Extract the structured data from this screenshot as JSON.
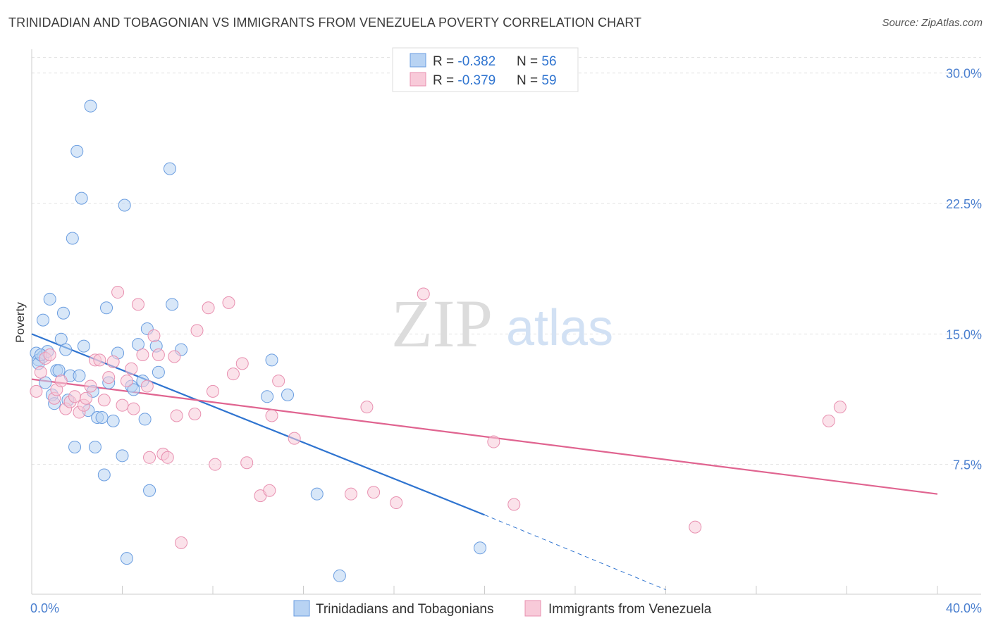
{
  "title": "TRINIDADIAN AND TOBAGONIAN VS IMMIGRANTS FROM VENEZUELA POVERTY CORRELATION CHART",
  "source": "Source: ZipAtlas.com",
  "watermark": {
    "zip": "ZIP",
    "atlas": "atlas"
  },
  "stats": [
    {
      "r_label": "R = ",
      "r_value": "-0.382",
      "n_label": "N = ",
      "n_value": "56",
      "color": "#a9c8f0",
      "stroke": "#6a9de0"
    },
    {
      "r_label": "R = ",
      "r_value": "-0.379",
      "n_label": "N = ",
      "n_value": "59",
      "color": "#f8c4d4",
      "stroke": "#e890b0"
    }
  ],
  "chart_data": {
    "type": "scatter",
    "title": "TRINIDADIAN AND TOBAGONIAN VS IMMIGRANTS FROM VENEZUELA POVERTY CORRELATION CHART",
    "xlabel": "",
    "ylabel": "Poverty",
    "xlim": [
      0,
      40
    ],
    "ylim": [
      0,
      31
    ],
    "x_tick_labels": [
      "0.0%",
      "40.0%"
    ],
    "y_ticks": [
      7.5,
      15.0,
      22.5,
      30.0
    ],
    "y_tick_labels": [
      "7.5%",
      "15.0%",
      "22.5%",
      "30.0%"
    ],
    "grid": true,
    "legend_position": "bottom",
    "series": [
      {
        "name": "Trinidadians and Tobagonians",
        "color": "#6a9de0",
        "fill": "#b8d3f3",
        "trend": {
          "x": [
            0,
            20
          ],
          "y": [
            15.0,
            4.6
          ],
          "dashed_to": [
            28,
            0.3
          ],
          "color": "#2f74d0"
        },
        "points": [
          [
            0.2,
            13.9
          ],
          [
            0.3,
            13.5
          ],
          [
            0.5,
            13.7
          ],
          [
            0.5,
            15.8
          ],
          [
            0.6,
            12.2
          ],
          [
            0.7,
            14.0
          ],
          [
            0.8,
            17.0
          ],
          [
            0.9,
            11.5
          ],
          [
            1.0,
            11.0
          ],
          [
            1.1,
            12.9
          ],
          [
            1.3,
            14.7
          ],
          [
            1.4,
            16.2
          ],
          [
            1.5,
            14.1
          ],
          [
            1.6,
            11.2
          ],
          [
            1.7,
            12.6
          ],
          [
            1.8,
            20.5
          ],
          [
            1.9,
            8.5
          ],
          [
            2.0,
            25.5
          ],
          [
            2.1,
            12.6
          ],
          [
            2.2,
            22.8
          ],
          [
            2.3,
            14.3
          ],
          [
            2.5,
            10.6
          ],
          [
            2.6,
            28.1
          ],
          [
            2.7,
            11.7
          ],
          [
            2.8,
            8.5
          ],
          [
            2.9,
            10.2
          ],
          [
            3.1,
            10.2
          ],
          [
            3.2,
            6.9
          ],
          [
            3.3,
            16.5
          ],
          [
            3.4,
            12.2
          ],
          [
            3.6,
            10.0
          ],
          [
            3.8,
            13.9
          ],
          [
            4.0,
            8.0
          ],
          [
            4.1,
            22.4
          ],
          [
            4.2,
            2.1
          ],
          [
            4.4,
            12.0
          ],
          [
            4.5,
            11.8
          ],
          [
            4.7,
            14.4
          ],
          [
            4.9,
            12.3
          ],
          [
            5.0,
            10.1
          ],
          [
            5.1,
            15.3
          ],
          [
            5.2,
            6.0
          ],
          [
            5.5,
            14.3
          ],
          [
            5.6,
            12.8
          ],
          [
            6.1,
            24.5
          ],
          [
            6.2,
            16.7
          ],
          [
            6.6,
            14.1
          ],
          [
            10.4,
            11.4
          ],
          [
            10.6,
            13.5
          ],
          [
            11.3,
            11.5
          ],
          [
            12.6,
            5.8
          ],
          [
            13.6,
            1.1
          ],
          [
            19.8,
            2.7
          ],
          [
            0.3,
            13.3
          ],
          [
            0.4,
            13.8
          ],
          [
            1.2,
            12.9
          ]
        ]
      },
      {
        "name": "Immigrants from Venezuela",
        "color": "#e890b0",
        "fill": "#f8cad9",
        "trend": {
          "x": [
            0,
            40
          ],
          "y": [
            12.4,
            5.8
          ],
          "color": "#e06490"
        },
        "points": [
          [
            0.2,
            11.7
          ],
          [
            0.4,
            12.8
          ],
          [
            0.6,
            13.6
          ],
          [
            0.8,
            13.8
          ],
          [
            1.0,
            11.3
          ],
          [
            1.1,
            11.8
          ],
          [
            1.3,
            12.3
          ],
          [
            1.5,
            10.7
          ],
          [
            1.7,
            11.1
          ],
          [
            1.9,
            11.4
          ],
          [
            2.1,
            10.5
          ],
          [
            2.3,
            10.9
          ],
          [
            2.4,
            11.3
          ],
          [
            2.6,
            12.0
          ],
          [
            2.8,
            13.5
          ],
          [
            3.0,
            13.5
          ],
          [
            3.2,
            11.2
          ],
          [
            3.4,
            12.5
          ],
          [
            3.6,
            13.4
          ],
          [
            3.8,
            17.4
          ],
          [
            4.0,
            10.9
          ],
          [
            4.2,
            12.3
          ],
          [
            4.4,
            13.0
          ],
          [
            4.5,
            10.7
          ],
          [
            4.7,
            16.7
          ],
          [
            4.9,
            13.8
          ],
          [
            5.1,
            12.0
          ],
          [
            5.2,
            7.9
          ],
          [
            5.4,
            14.9
          ],
          [
            5.6,
            13.8
          ],
          [
            5.8,
            8.1
          ],
          [
            6.0,
            7.9
          ],
          [
            6.3,
            13.7
          ],
          [
            6.4,
            10.3
          ],
          [
            6.6,
            3.0
          ],
          [
            7.2,
            10.4
          ],
          [
            7.3,
            15.2
          ],
          [
            7.8,
            16.5
          ],
          [
            8.0,
            11.7
          ],
          [
            8.1,
            7.5
          ],
          [
            8.7,
            16.8
          ],
          [
            8.9,
            12.7
          ],
          [
            9.3,
            13.3
          ],
          [
            9.5,
            7.6
          ],
          [
            10.1,
            5.7
          ],
          [
            10.5,
            6.0
          ],
          [
            10.6,
            10.3
          ],
          [
            10.9,
            12.3
          ],
          [
            11.6,
            9.0
          ],
          [
            14.1,
            5.8
          ],
          [
            14.8,
            10.8
          ],
          [
            15.1,
            5.9
          ],
          [
            16.1,
            5.3
          ],
          [
            17.3,
            17.3
          ],
          [
            20.4,
            8.8
          ],
          [
            21.3,
            5.2
          ],
          [
            29.3,
            3.9
          ],
          [
            35.2,
            10.0
          ],
          [
            35.7,
            10.8
          ]
        ]
      }
    ]
  }
}
